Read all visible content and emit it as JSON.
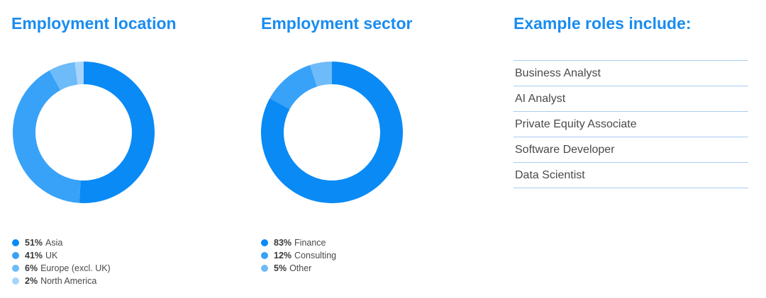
{
  "chart_data": [
    {
      "type": "pie",
      "title": "Employment location",
      "categories": [
        "Asia",
        "UK",
        "Europe (excl. UK)",
        "North America"
      ],
      "values": [
        51,
        41,
        6,
        2
      ],
      "labels": [
        "51%",
        "41%",
        "6%",
        "2%"
      ],
      "colors": [
        "#0a8af5",
        "#38a2f8",
        "#6dbbf9",
        "#a6d4fb"
      ],
      "legend_placement": "bottom-left"
    },
    {
      "type": "pie",
      "title": "Employment sector",
      "categories": [
        "Finance",
        "Consulting",
        "Other"
      ],
      "values": [
        83,
        12,
        5
      ],
      "labels": [
        "83%",
        "12%",
        "5%"
      ],
      "colors": [
        "#0a8af5",
        "#38a2f8",
        "#6dbbf9"
      ],
      "legend_placement": "bottom-left"
    }
  ],
  "roles": {
    "title": "Example roles include:",
    "items": [
      "Business Analyst",
      "AI Analyst",
      "Private Equity Associate",
      "Software Developer",
      "Data Scientist"
    ]
  },
  "colors": {
    "heading": "#1a8cf0",
    "divider": "#a9cdf0"
  }
}
